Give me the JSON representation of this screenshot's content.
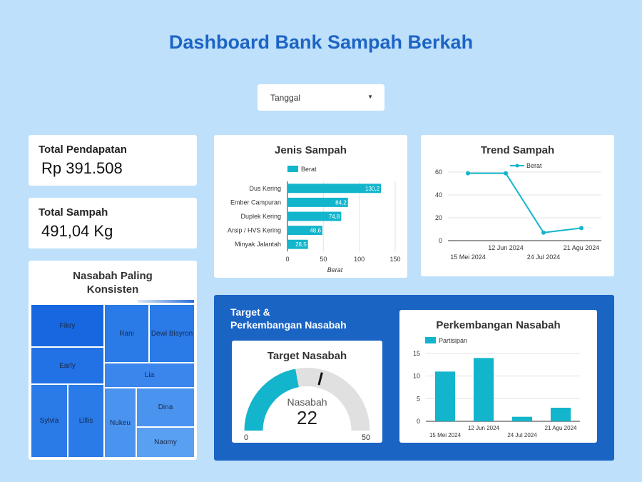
{
  "page": {
    "title": "Dashboard Bank Sampah Berkah"
  },
  "filter": {
    "label": "Tanggal",
    "icon": "caret-down-icon"
  },
  "kpis": {
    "pendapatan": {
      "label": "Total Pendapatan",
      "value": "Rp 391.508"
    },
    "sampah": {
      "label": "Total Sampah",
      "value": "491,04 Kg"
    }
  },
  "treemap": {
    "title_line1": "Nasabah Paling",
    "title_line2": "Konsisten",
    "items": [
      "Fikry",
      "Rani",
      "Dewi Bisyron",
      "Early",
      "Lia",
      "Sylvia",
      "Lillis",
      "Nukeu",
      "Dina",
      "Naomy"
    ],
    "colors": {
      "dark": "#1767e0",
      "mid": "#2a7ae8",
      "light": "#4a94f0"
    }
  },
  "jenis_chart": {
    "title": "Jenis Sampah"
  },
  "trend_chart": {
    "title": "Trend Sampah"
  },
  "target_section": {
    "title_line1": "Target &",
    "title_line2": "Perkembangan Nasabah"
  },
  "gauge": {
    "title": "Target Nasabah",
    "label": "Nasabah",
    "value": 22,
    "min": 0,
    "max": 50,
    "target_fraction": 0.58,
    "fill_color": "#12b5cb"
  },
  "perk_chart": {
    "title": "Perkembangan Nasabah"
  },
  "chart_data": [
    {
      "type": "bar",
      "orientation": "horizontal",
      "title": "Jenis Sampah",
      "categories": [
        "Dus Kering",
        "Ember Campuran",
        "Duplek Kering",
        "Arsip / HVS Kering",
        "Minyak Jalantah"
      ],
      "series": [
        {
          "name": "Berat",
          "values": [
            130.2,
            84.2,
            74.8,
            48.6,
            28.5
          ]
        }
      ],
      "value_labels": [
        "130,2",
        "84,2",
        "74,8",
        "48,6",
        "28,5"
      ],
      "xlabel": "Berat",
      "xlim": [
        0,
        150
      ],
      "xticks": [
        "0",
        "50",
        "100",
        "150"
      ],
      "color": "#12b5cb",
      "legend": "top",
      "grid": true
    },
    {
      "type": "line",
      "title": "Trend Sampah",
      "x": [
        "15 Mei 2024",
        "12 Jun 2024",
        "24 Jul 2024",
        "21 Agu 2024"
      ],
      "series": [
        {
          "name": "Berat",
          "values": [
            59,
            59,
            7,
            11
          ]
        }
      ],
      "ylim": [
        0,
        60
      ],
      "yticks": [
        "0",
        "20",
        "40",
        "60"
      ],
      "color": "#12b5cb",
      "legend": "top",
      "grid": true
    },
    {
      "type": "bar",
      "title": "Perkembangan Nasabah",
      "categories": [
        "15 Mei 2024",
        "12 Jun 2024",
        "24 Jul 2024",
        "21 Agu 2024"
      ],
      "series": [
        {
          "name": "Partisipan",
          "values": [
            11,
            14,
            1,
            3
          ]
        }
      ],
      "ylim": [
        0,
        15
      ],
      "yticks": [
        "0",
        "5",
        "10",
        "15"
      ],
      "color": "#12b5cb",
      "legend": "top-left",
      "grid": true
    }
  ]
}
